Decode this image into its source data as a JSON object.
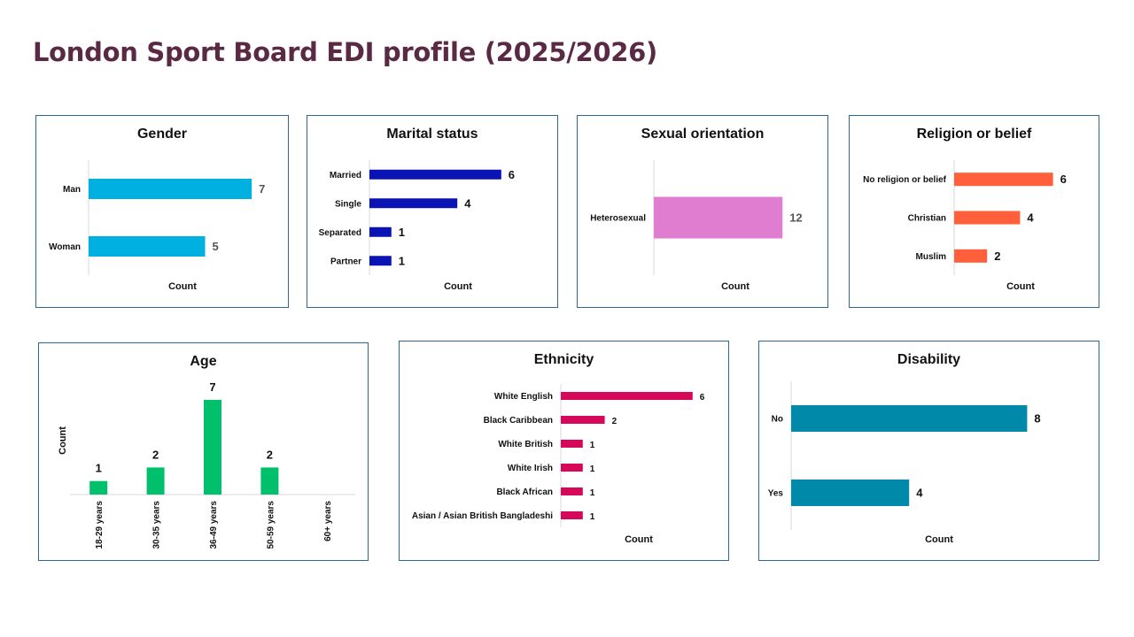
{
  "page": {
    "title": "London Sport Board EDI profile (2025/2026)"
  },
  "chart_data": [
    {
      "id": "gender",
      "type": "bar",
      "orientation": "horizontal",
      "title": "Gender",
      "xlabel": "Count",
      "categories": [
        "Man",
        "Woman"
      ],
      "values": [
        7,
        5
      ],
      "color": "#00b0e0",
      "value_label_color": "#555555"
    },
    {
      "id": "marital",
      "type": "bar",
      "orientation": "horizontal",
      "title": "Marital status",
      "xlabel": "Count",
      "categories": [
        "Married",
        "Single",
        "Separated",
        "Partner"
      ],
      "values": [
        6,
        4,
        1,
        1
      ],
      "color": "#0a14b4"
    },
    {
      "id": "sexual",
      "type": "bar",
      "orientation": "horizontal",
      "title": "Sexual orientation",
      "xlabel": "Count",
      "categories": [
        "Heterosexual"
      ],
      "values": [
        12
      ],
      "color": "#e07dd0",
      "value_label_color": "#555555"
    },
    {
      "id": "religion",
      "type": "bar",
      "orientation": "horizontal",
      "title": "Religion or belief",
      "xlabel": "Count",
      "categories": [
        "No religion or belief",
        "Christian",
        "Muslim"
      ],
      "values": [
        6,
        4,
        2
      ],
      "color": "#ff5f3a"
    },
    {
      "id": "age",
      "type": "bar",
      "orientation": "vertical",
      "title": "Age",
      "ylabel": "Count",
      "categories": [
        "18-29 years",
        "30-35 years",
        "36-49 years",
        "50-59 years",
        "60+ years"
      ],
      "values": [
        1,
        2,
        7,
        2,
        null
      ],
      "color": "#00c06c"
    },
    {
      "id": "ethnicity",
      "type": "bar",
      "orientation": "horizontal",
      "title": "Ethnicity",
      "xlabel": "Count",
      "categories": [
        "White English",
        "Black Caribbean",
        "White British",
        "White Irish",
        "Black African",
        "Asian / Asian British Bangladeshi"
      ],
      "values": [
        6,
        2,
        1,
        1,
        1,
        1
      ],
      "color": "#d6085a"
    },
    {
      "id": "disability",
      "type": "bar",
      "orientation": "horizontal",
      "title": "Disability",
      "xlabel": "Count",
      "categories": [
        "No",
        "Yes"
      ],
      "values": [
        8,
        4
      ],
      "color": "#0089a8"
    }
  ]
}
